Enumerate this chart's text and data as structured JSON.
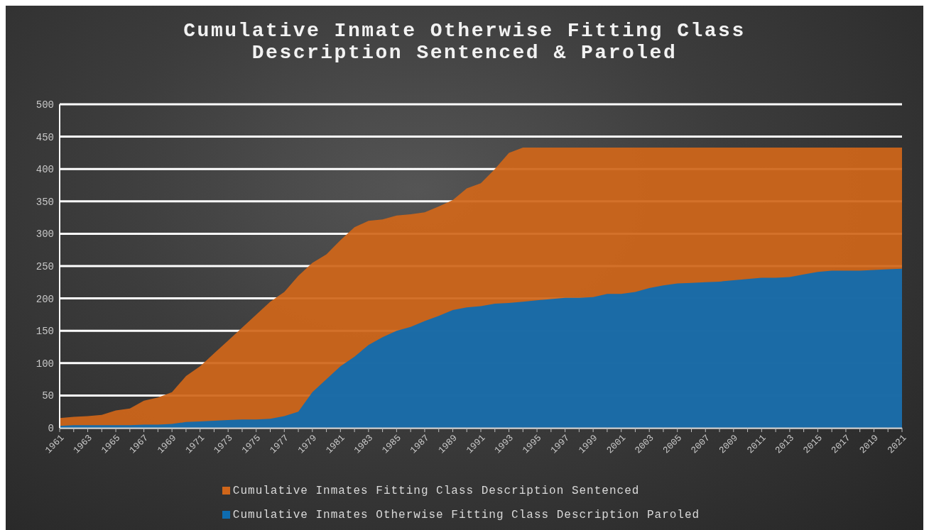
{
  "chart_data": {
    "type": "area",
    "title": "Cumulative Inmate Otherwise Fitting Class Description Sentenced & Paroled",
    "categories": [
      "1961",
      null,
      "1963",
      null,
      "1965",
      null,
      "1967",
      null,
      "1969",
      null,
      "1971",
      null,
      "1973",
      null,
      "1975",
      null,
      "1977",
      null,
      "1979",
      null,
      "1981",
      null,
      "1983",
      null,
      "1985",
      null,
      "1987",
      null,
      "1989",
      null,
      "1991",
      null,
      "1993",
      null,
      "1995",
      null,
      "1997",
      null,
      "1999",
      null,
      "2001",
      null,
      "2003",
      null,
      "2005",
      null,
      "2007",
      null,
      "2009",
      null,
      "2011",
      null,
      "2013",
      null,
      "2015",
      null,
      "2017",
      null,
      "2019",
      null,
      "2021"
    ],
    "series": [
      {
        "name": "Cumulative Inmates Fitting Class Description Sentenced",
        "color": "#d0661a",
        "values": [
          15,
          17,
          18,
          20,
          27,
          30,
          42,
          47,
          55,
          80,
          95,
          115,
          135,
          155,
          175,
          195,
          210,
          235,
          255,
          268,
          290,
          310,
          320,
          322,
          328,
          330,
          333,
          342,
          352,
          370,
          378,
          400,
          425,
          433,
          433,
          433,
          433,
          433,
          433,
          433,
          433,
          433,
          433,
          433,
          433,
          433,
          433,
          433,
          433,
          433,
          433,
          433,
          433,
          433,
          433,
          433,
          433,
          433,
          433,
          433,
          433
        ]
      },
      {
        "name": "Cumulative Inmates Otherwise Fitting Class Description Paroled",
        "color": "#0e6cb0",
        "values": [
          3,
          4,
          4,
          4,
          4,
          4,
          5,
          5,
          6,
          9,
          10,
          11,
          12,
          13,
          13,
          14,
          18,
          25,
          55,
          75,
          95,
          110,
          128,
          140,
          150,
          156,
          165,
          173,
          182,
          186,
          188,
          192,
          193,
          195,
          197,
          199,
          201,
          201,
          202,
          207,
          207,
          210,
          216,
          220,
          223,
          224,
          225,
          226,
          228,
          230,
          232,
          232,
          233,
          237,
          241,
          243,
          243,
          243,
          244,
          245,
          246
        ]
      }
    ],
    "ylim": [
      0,
      500
    ],
    "yticks": [
      0,
      50,
      100,
      150,
      200,
      250,
      300,
      350,
      400,
      450,
      500
    ],
    "grid": "y",
    "legend": "bottom"
  }
}
